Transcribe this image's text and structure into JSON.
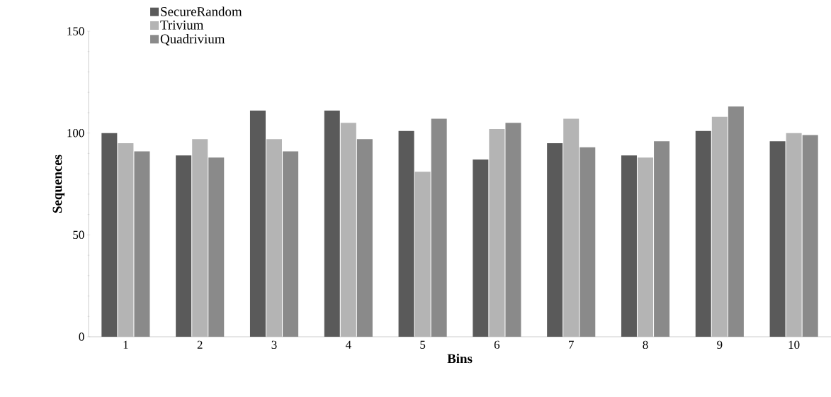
{
  "chart_data": {
    "type": "bar",
    "xlabel": "Bins",
    "ylabel": "Sequences",
    "categories": [
      "1",
      "2",
      "3",
      "4",
      "5",
      "6",
      "7",
      "8",
      "9",
      "10"
    ],
    "series": [
      {
        "name": "SecureRandom",
        "color": "#5a5a5a",
        "values": [
          100,
          89,
          111,
          111,
          101,
          87,
          95,
          89,
          101,
          96
        ]
      },
      {
        "name": "Trivium",
        "color": "#b4b4b4",
        "values": [
          95,
          97,
          97,
          105,
          81,
          102,
          107,
          88,
          108,
          100
        ]
      },
      {
        "name": "Quadrivium",
        "color": "#8a8a8a",
        "values": [
          91,
          88,
          91,
          97,
          107,
          105,
          93,
          96,
          113,
          99
        ]
      }
    ],
    "ylim": [
      0,
      150
    ],
    "yticks": [
      0,
      50,
      100,
      150
    ],
    "grid": false,
    "legend": "top left"
  }
}
